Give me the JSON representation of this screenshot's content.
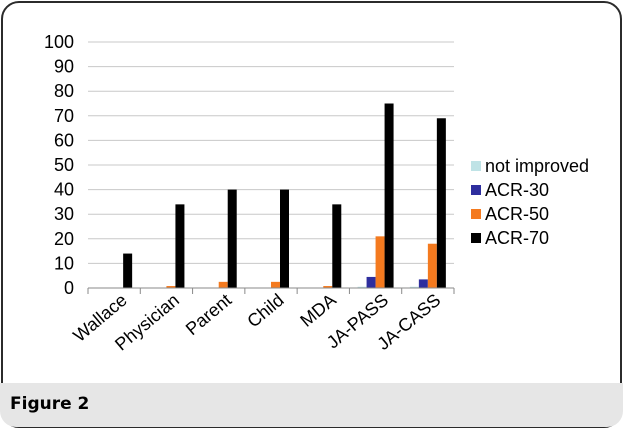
{
  "figure": {
    "caption": "Figure 2"
  },
  "chart_data": {
    "type": "bar",
    "categories": [
      "Wallace",
      "Physician",
      "Parent",
      "Child",
      "MDA",
      "JA-PASS",
      "JA-CASS"
    ],
    "ylim": [
      0,
      100
    ],
    "yticks": [
      0,
      10,
      20,
      30,
      40,
      50,
      60,
      70,
      80,
      90,
      100
    ],
    "grid": true,
    "legend_position": "right",
    "series": [
      {
        "name": "not improved",
        "color": "#bfe3e6",
        "values": [
          0,
          0,
          0,
          0,
          0,
          0.5,
          0.5
        ]
      },
      {
        "name": "ACR-30",
        "color": "#2e2e9e",
        "values": [
          0,
          0,
          0,
          0,
          0,
          4.5,
          3.5
        ]
      },
      {
        "name": "ACR-50",
        "color": "#f47a1f",
        "values": [
          0,
          0.8,
          2.5,
          2.5,
          0.8,
          21,
          18
        ]
      },
      {
        "name": "ACR-70",
        "color": "#000000",
        "values": [
          14,
          34,
          40,
          40,
          34,
          75,
          69
        ]
      }
    ]
  }
}
